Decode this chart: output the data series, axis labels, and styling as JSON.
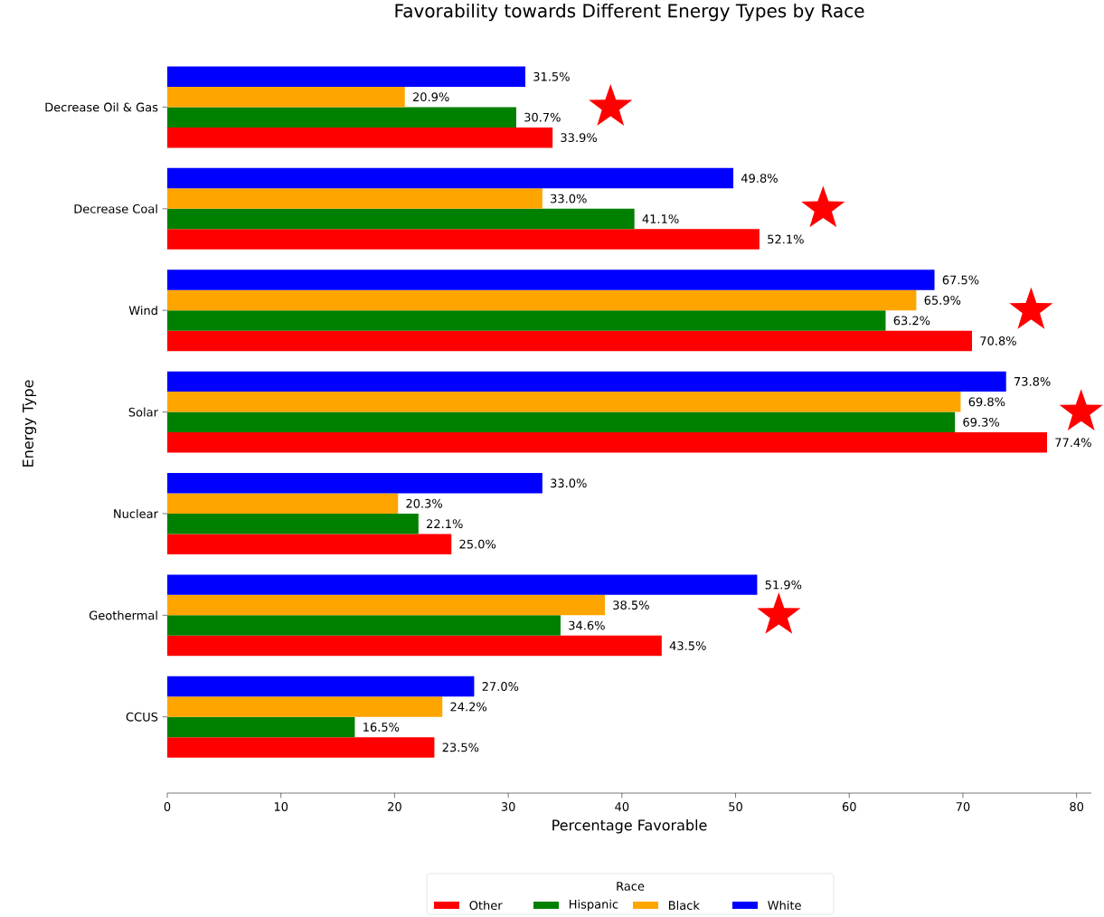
{
  "chart_data": {
    "type": "bar",
    "orientation": "horizontal",
    "title": "Favorability towards Different Energy Types by Race",
    "xlabel": "Percentage Favorable",
    "ylabel": "Energy Type",
    "legend_title": "Race",
    "legend": "bottom",
    "categories": [
      "Decrease Oil & Gas",
      "Decrease Coal",
      "Wind",
      "Solar",
      "Nuclear",
      "Geothermal",
      "CCUS"
    ],
    "xlim": [
      0,
      81.3
    ],
    "xticks": [
      0,
      10,
      20,
      30,
      40,
      50,
      60,
      70,
      80
    ],
    "series": [
      {
        "name": "Other",
        "color": "#ff0000",
        "values": [
          33.9,
          52.1,
          70.8,
          77.4,
          25.0,
          43.5,
          23.5
        ],
        "value_labels": [
          "33.9%",
          "52.1%",
          "70.8%",
          "77.4%",
          "25.0%",
          "43.5%",
          "23.5%"
        ]
      },
      {
        "name": "Hispanic",
        "color": "#008000",
        "values": [
          30.7,
          41.1,
          63.2,
          69.3,
          22.1,
          34.6,
          16.5
        ],
        "value_labels": [
          "30.7%",
          "41.1%",
          "63.2%",
          "69.3%",
          "22.1%",
          "34.6%",
          "16.5%"
        ]
      },
      {
        "name": "Black",
        "color": "#ffa500",
        "values": [
          20.9,
          33.0,
          65.9,
          69.8,
          20.3,
          38.5,
          24.2
        ],
        "value_labels": [
          "20.9%",
          "33.0%",
          "65.9%",
          "69.8%",
          "20.3%",
          "38.5%",
          "24.2%"
        ]
      },
      {
        "name": "White",
        "color": "#0000ff",
        "values": [
          31.5,
          49.8,
          67.5,
          73.8,
          33.0,
          51.9,
          27.0
        ],
        "value_labels": [
          "31.5%",
          "49.8%",
          "67.5%",
          "73.8%",
          "33.0%",
          "51.9%",
          "27.0%"
        ]
      },
      {
        "type": "scatter",
        "marker": "star",
        "color": "#ff0000",
        "values": [
          39.0,
          57.7,
          76.0,
          80.4,
          null,
          53.8,
          null
        ]
      }
    ]
  }
}
